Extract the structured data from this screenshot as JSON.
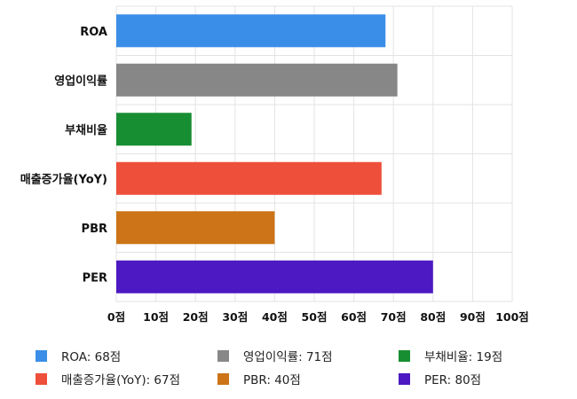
{
  "chart_data": {
    "type": "bar",
    "orientation": "horizontal",
    "categories": [
      "ROA",
      "영업이익률",
      "부채비율",
      "매출증가율(YoY)",
      "PBR",
      "PER"
    ],
    "values": [
      68,
      71,
      19,
      67,
      40,
      80
    ],
    "colors": [
      "#3b8ee8",
      "#878787",
      "#178e32",
      "#ee4f3a",
      "#cc7417",
      "#4c19c2"
    ],
    "xlim": [
      0,
      100
    ],
    "x_ticks": [
      0,
      10,
      20,
      30,
      40,
      50,
      60,
      70,
      80,
      90,
      100
    ],
    "x_tick_suffix": "점",
    "x_tick_labels": [
      "0점",
      "10점",
      "20점",
      "30점",
      "40점",
      "50점",
      "60점",
      "70점",
      "80점",
      "90점",
      "100점"
    ],
    "grid": true,
    "legend_position": "bottom",
    "legend": [
      {
        "label": "ROA: 68점",
        "color": "#3b8ee8"
      },
      {
        "label": "영업이익률: 71점",
        "color": "#878787"
      },
      {
        "label": "부채비율: 19점",
        "color": "#178e32"
      },
      {
        "label": "매출증가율(YoY): 67점",
        "color": "#ee4f3a"
      },
      {
        "label": "PBR: 40점",
        "color": "#cc7417"
      },
      {
        "label": "PER: 80점",
        "color": "#4c19c2"
      }
    ]
  }
}
